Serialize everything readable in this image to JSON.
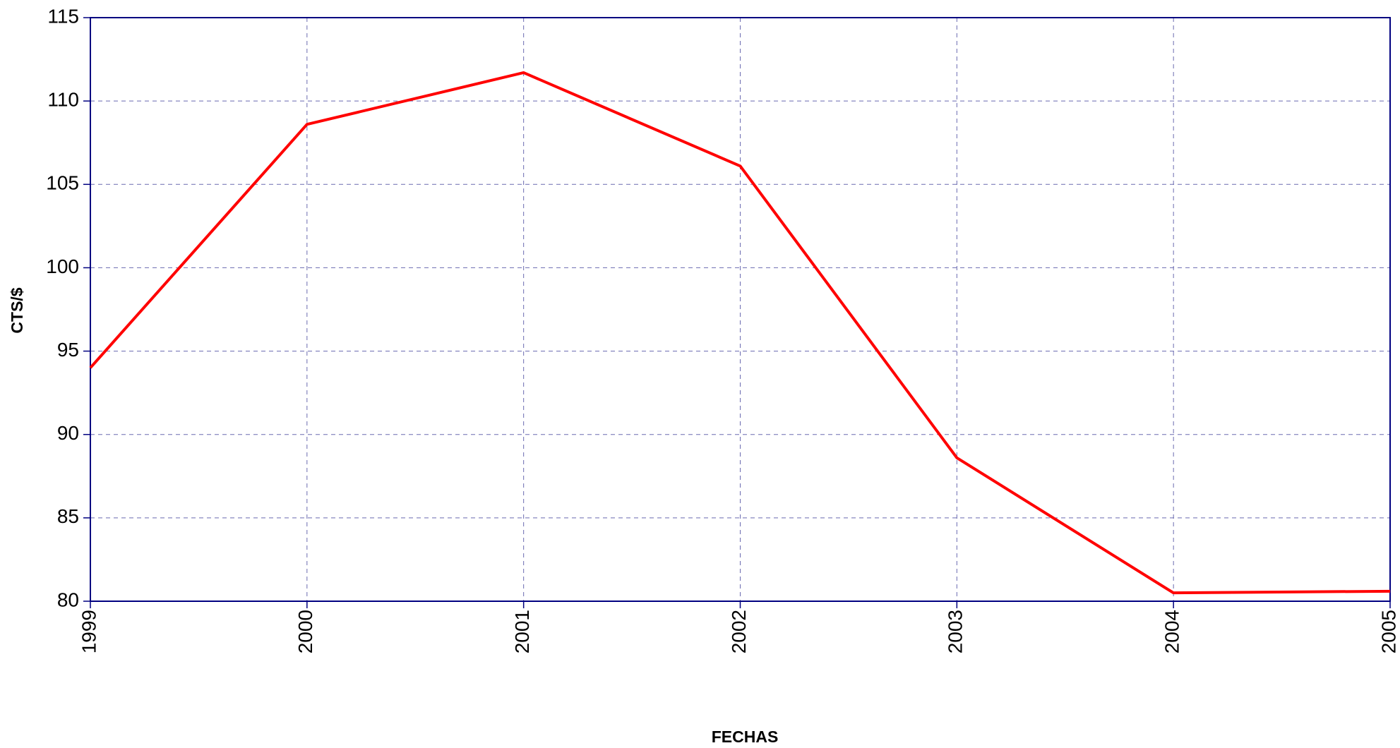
{
  "chart_data": {
    "type": "line",
    "x_label": "FECHAS",
    "y_label": "CTS/$",
    "x": [
      1999,
      2000,
      2001,
      2002,
      2003,
      2004,
      2005
    ],
    "series": [
      {
        "name": "CTS/$",
        "color": "#ff0000",
        "values": [
          94,
          108.6,
          111.7,
          106.1,
          88.6,
          80.5,
          80.6
        ]
      }
    ],
    "xlim": [
      1999,
      2005
    ],
    "xticks": [
      1999,
      2000,
      2001,
      2002,
      2003,
      2004,
      2005
    ],
    "ylim": [
      80,
      115
    ],
    "yticks": [
      80,
      85,
      90,
      95,
      100,
      105,
      110,
      115
    ],
    "grid": true
  }
}
